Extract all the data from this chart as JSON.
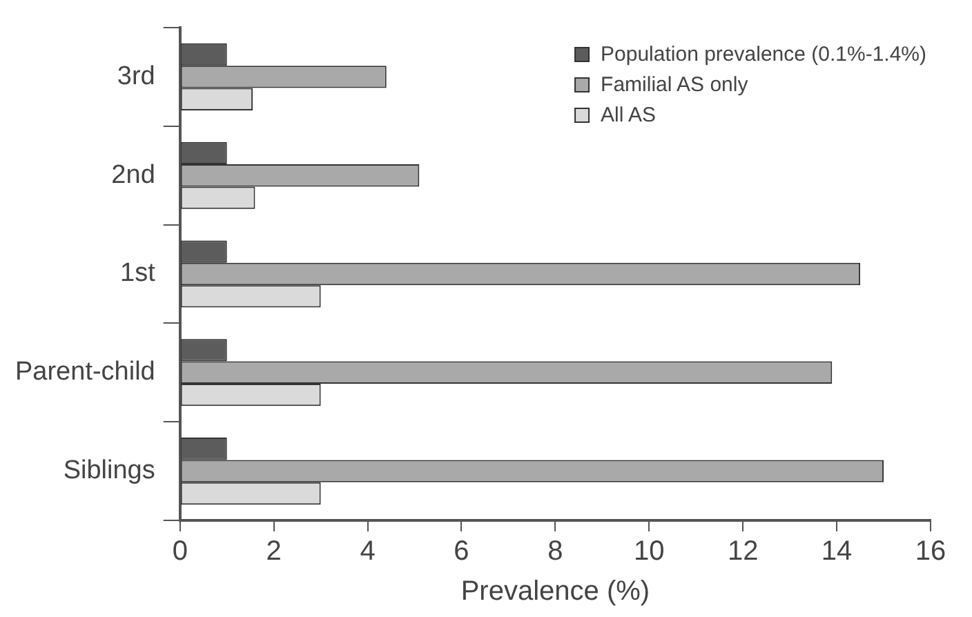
{
  "chart_data": {
    "type": "bar",
    "orientation": "horizontal",
    "xlabel": "Prevalence (%)",
    "categories": [
      "3rd",
      "2nd",
      "1st",
      "Parent-child",
      "Siblings"
    ],
    "series": [
      {
        "name": "Population prevalence (0.1%-1.4%)",
        "color": "#5c5c5c",
        "values": [
          1.0,
          1.0,
          1.0,
          1.0,
          1.0
        ]
      },
      {
        "name": "Familial AS only",
        "color": "#a9a9a9",
        "values": [
          4.4,
          5.1,
          14.5,
          13.9,
          15.0
        ]
      },
      {
        "name": "All AS",
        "color": "#dadada",
        "values": [
          1.55,
          1.6,
          3.0,
          3.0,
          3.0
        ]
      }
    ],
    "xlim": [
      0,
      16
    ],
    "xticks": [
      0,
      2,
      4,
      6,
      8,
      10,
      12,
      14,
      16
    ],
    "grid": false,
    "legend": "top right"
  }
}
